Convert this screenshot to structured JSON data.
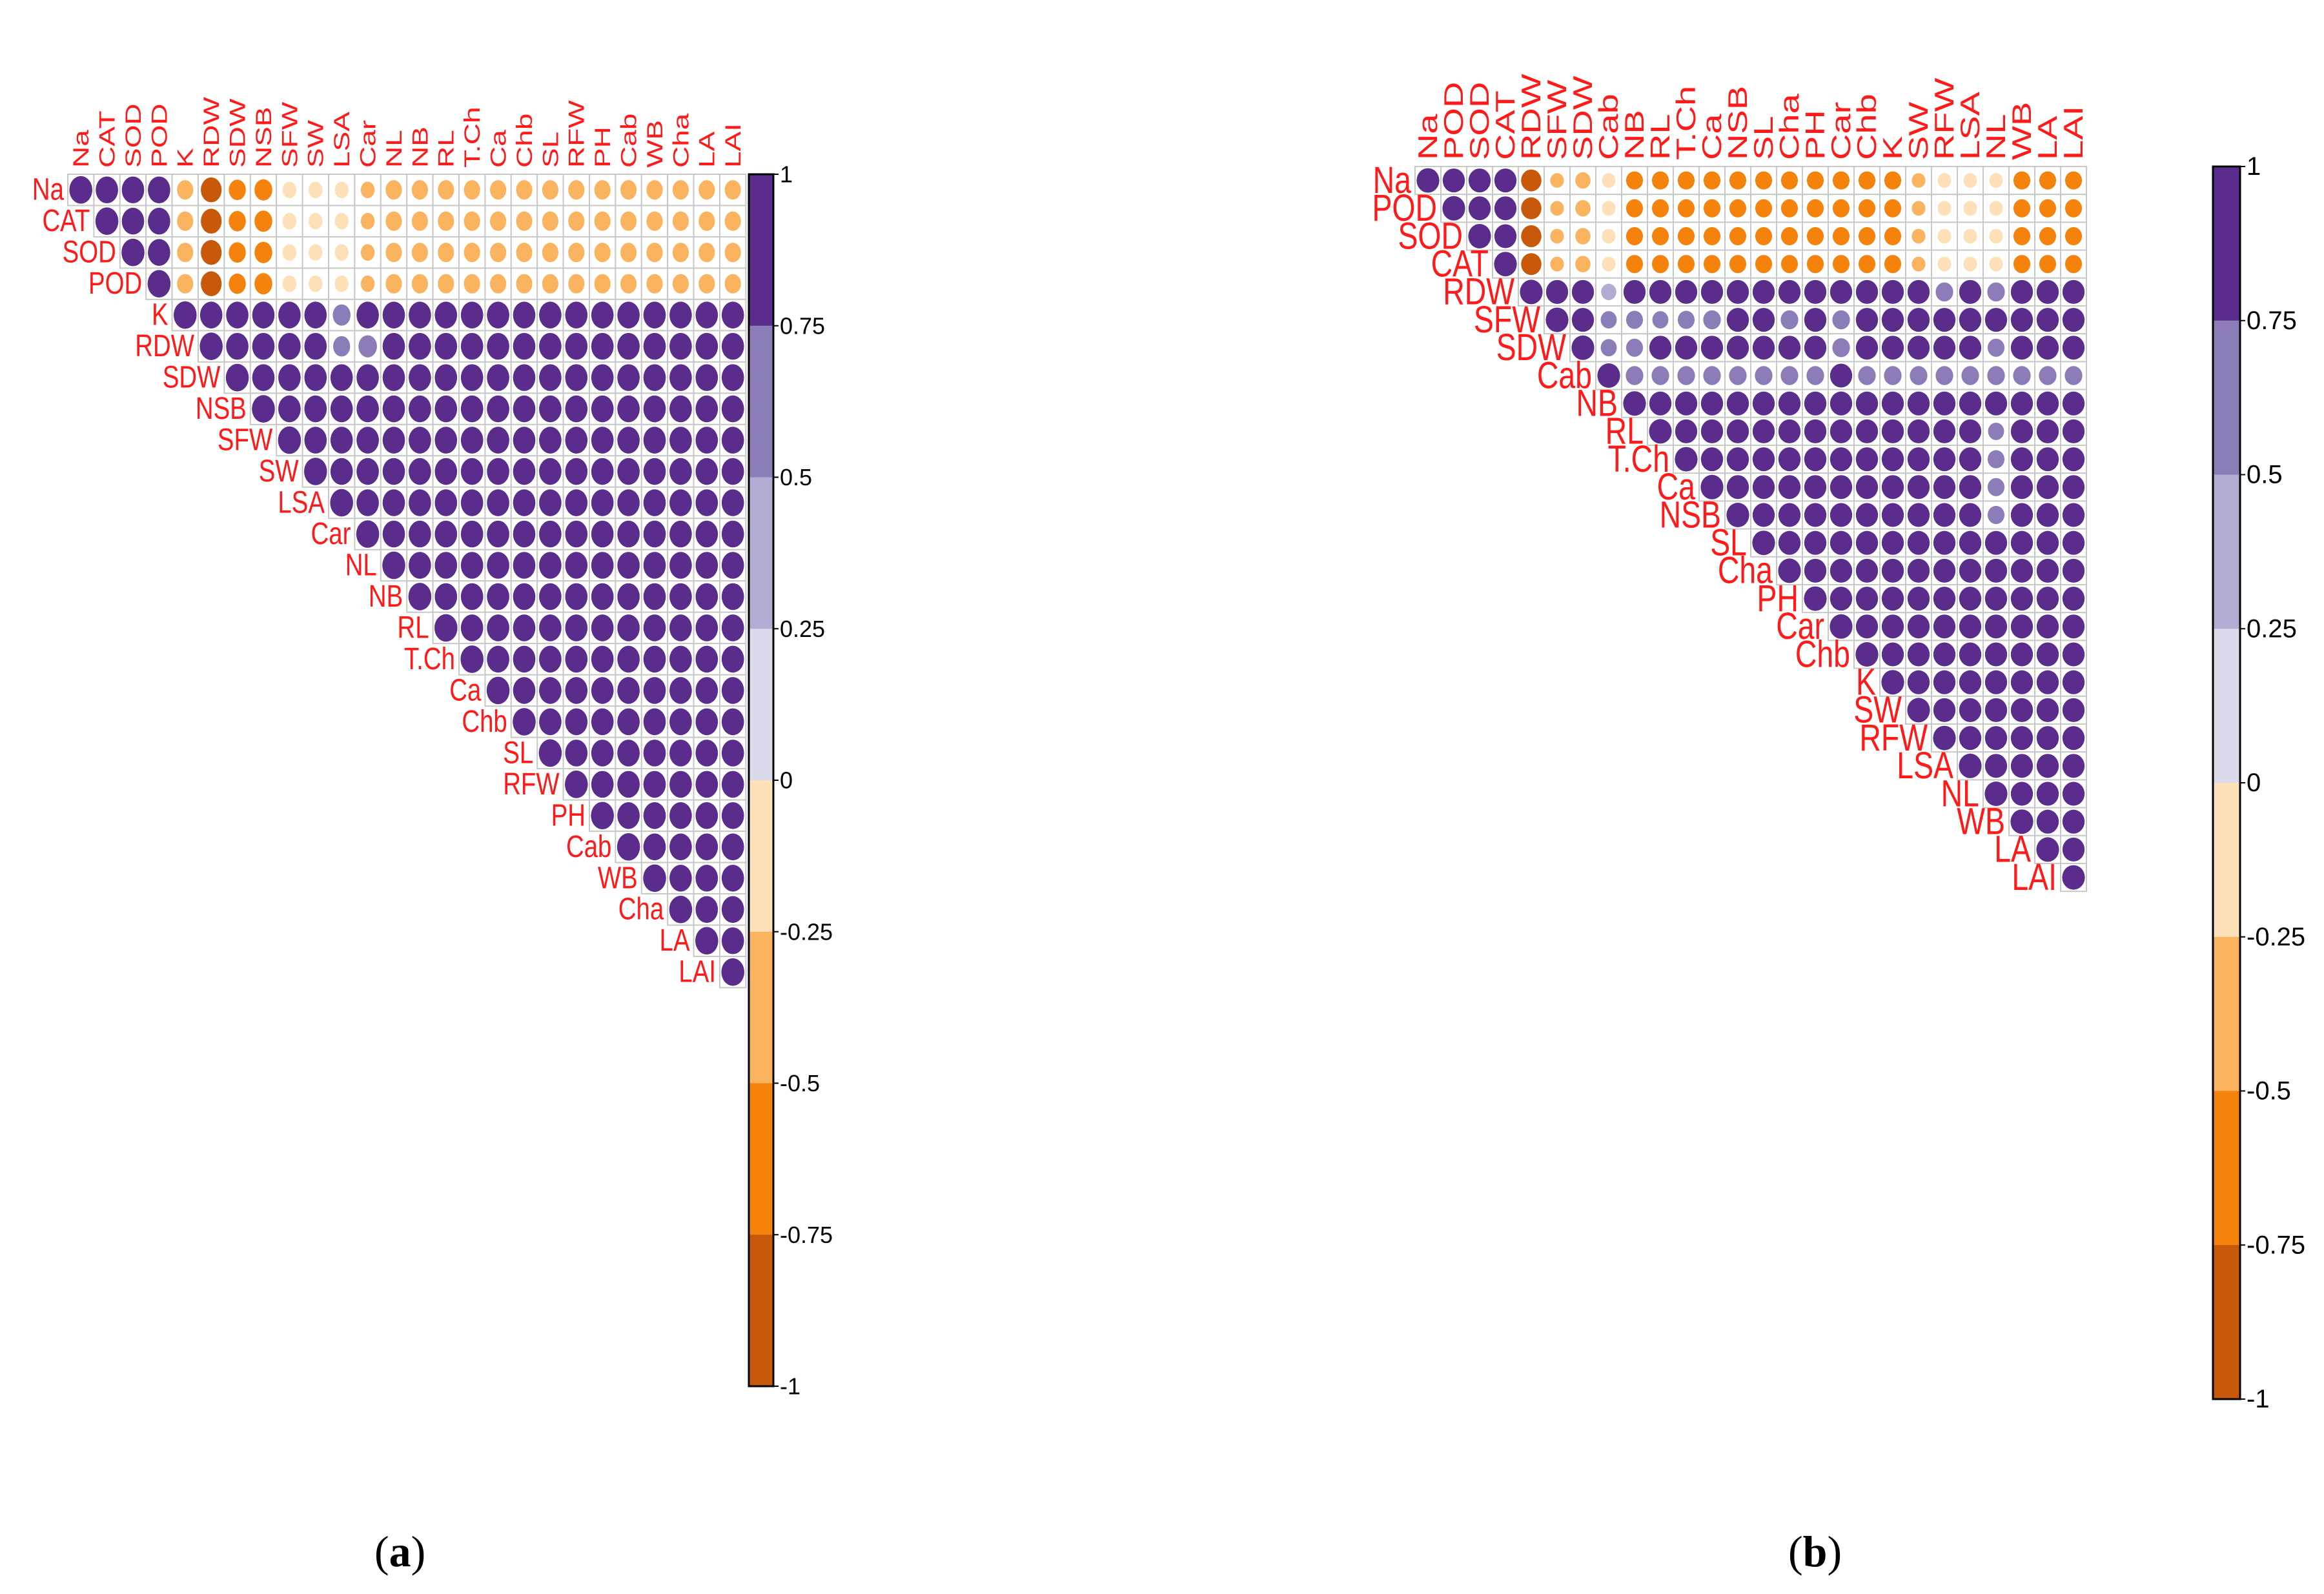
{
  "chart_data": [
    {
      "type": "heatmap",
      "panel": "a",
      "subtype": "correlation-upper-triangle-circles",
      "variables": [
        "Na",
        "CAT",
        "SOD",
        "POD",
        "K",
        "RDW",
        "SDW",
        "NSB",
        "SFW",
        "SW",
        "LSA",
        "Car",
        "NL",
        "NB",
        "RL",
        "T.Ch",
        "Ca",
        "Chb",
        "SL",
        "RFW",
        "PH",
        "Cab",
        "WB",
        "Cha",
        "LA",
        "LAI"
      ],
      "negatively_correlated_vars": [
        "Na",
        "CAT",
        "SOD",
        "POD"
      ],
      "within_group_r": 0.95,
      "between_group_r_default": -0.5,
      "between_group_r_by_var": {
        "RDW": -0.82,
        "SDW": -0.55,
        "NSB": -0.6,
        "SFW": -0.2,
        "SW": -0.15,
        "LSA": -0.1,
        "Car": -0.3
      },
      "other_r_default": 0.95,
      "other_r_overrides": [
        [
          "LSA",
          "K",
          0.6
        ],
        [
          "LSA",
          "RDW",
          0.55
        ],
        [
          "Car",
          "RDW",
          0.65
        ]
      ],
      "color_scale": {
        "min": -1,
        "max": 1,
        "ticks": [
          "1",
          "0.75",
          "0.5",
          "0.25",
          "0",
          "-0.25",
          "-0.5",
          "-0.75",
          "-1"
        ],
        "colors": [
          "#c8580a",
          "#f5820d",
          "#fab35e",
          "#fde0b8",
          "#dadaeb",
          "#b3abd2",
          "#8c7db9",
          "#5a2c8c"
        ]
      }
    },
    {
      "type": "heatmap",
      "panel": "b",
      "subtype": "correlation-upper-triangle-circles",
      "variables": [
        "Na",
        "POD",
        "SOD",
        "CAT",
        "RDW",
        "SFW",
        "SDW",
        "Cab",
        "NB",
        "RL",
        "T.Ch",
        "Ca",
        "NSB",
        "SL",
        "Cha",
        "PH",
        "Car",
        "Chb",
        "K",
        "SW",
        "RFW",
        "LSA",
        "NL",
        "WB",
        "LA",
        "LAI"
      ],
      "negatively_correlated_vars": [
        "Na",
        "POD",
        "SOD",
        "CAT"
      ],
      "within_group_r": 0.95,
      "between_group_r_default": -0.55,
      "between_group_r_by_var": {
        "RDW": -0.8,
        "SFW": -0.35,
        "SDW": -0.45,
        "Cab": -0.05,
        "SW": -0.3,
        "RFW": -0.25,
        "LSA": -0.2,
        "NL": -0.15
      },
      "other_r_default": 0.95,
      "other_r_by_row": {
        "Cab": 0.6
      },
      "other_r_overrides": [
        [
          "RDW",
          "Cab",
          0.45
        ],
        [
          "RDW",
          "RFW",
          0.6
        ],
        [
          "RDW",
          "NL",
          0.6
        ],
        [
          "SFW",
          "Cab",
          0.5
        ],
        [
          "SFW",
          "NB",
          0.55
        ],
        [
          "SFW",
          "RL",
          0.5
        ],
        [
          "SFW",
          "T.Ch",
          0.55
        ],
        [
          "SFW",
          "Ca",
          0.6
        ],
        [
          "SFW",
          "Cha",
          0.6
        ],
        [
          "SFW",
          "Car",
          0.6
        ],
        [
          "SDW",
          "Cab",
          0.5
        ],
        [
          "SDW",
          "NB",
          0.55
        ],
        [
          "SDW",
          "Car",
          0.6
        ],
        [
          "SDW",
          "NL",
          0.55
        ],
        [
          "RL",
          "NL",
          0.5
        ],
        [
          "T.Ch",
          "NL",
          0.55
        ],
        [
          "Ca",
          "NL",
          0.55
        ],
        [
          "NSB",
          "NL",
          0.55
        ],
        [
          "Cab",
          "Car",
          0.95
        ]
      ],
      "color_scale": {
        "min": -1,
        "max": 1,
        "ticks": [
          "1",
          "0.75",
          "0.5",
          "0.25",
          "0",
          "-0.25",
          "-0.5",
          "-0.75",
          "-1"
        ],
        "colors": [
          "#c8580a",
          "#f5820d",
          "#fab35e",
          "#fde0b8",
          "#dadaeb",
          "#b3abd2",
          "#8c7db9",
          "#5a2c8c"
        ]
      }
    }
  ],
  "labels": {
    "a": "a",
    "b": "b"
  }
}
